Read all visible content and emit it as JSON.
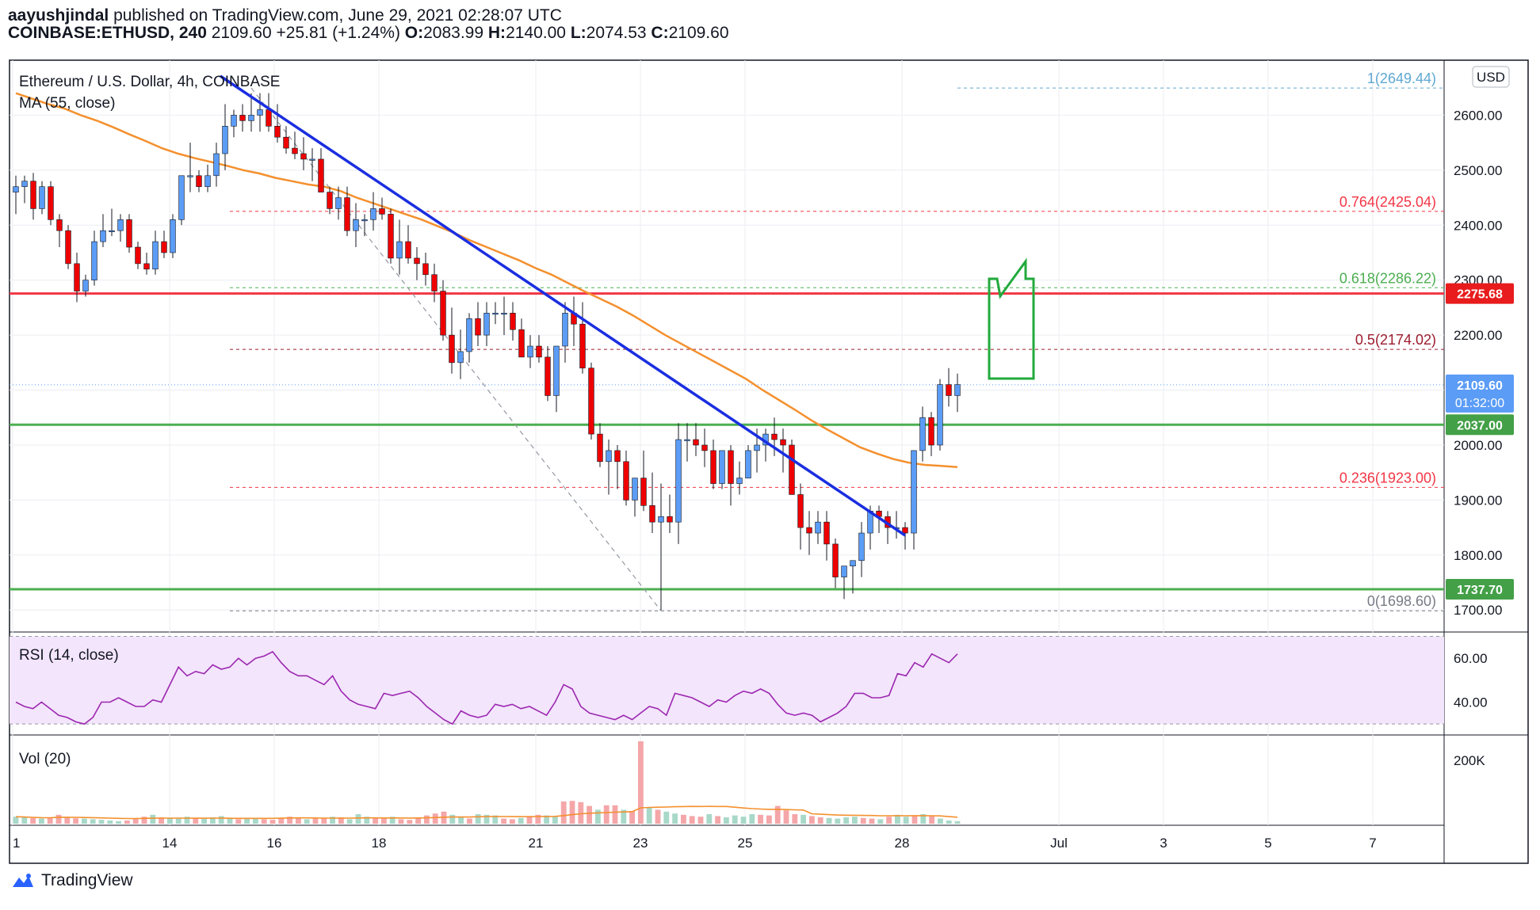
{
  "header": {
    "author": "aayushjindal",
    "published_text": "published on TradingView.com, June 29, 2021 02:28:07 UTC",
    "symbol_line": "COINBASE:ETHUSD, 240",
    "last": "2109.60",
    "change": "+25.81 (+1.24%)",
    "o_label": "O:",
    "o_value": "2083.99",
    "h_label": "H:",
    "h_value": "2140.00",
    "l_label": "L:",
    "l_value": "2074.53",
    "c_label": "C:",
    "c_value": "2109.60"
  },
  "footer": {
    "brand": "TradingView"
  },
  "colors": {
    "up": "#5b9cf6",
    "down": "#ef0000",
    "ma": "#f4902e",
    "trendline": "#1a2ee0",
    "support": "#4caf50",
    "resistance": "#f23645",
    "rsi": "#9c27b0",
    "rsi_band": "#f3e5fc",
    "arrow": "#22aa3c"
  },
  "chart_data": {
    "type": "candlestick",
    "title": "Ethereum / U.S. Dollar, 4h, COINBASE",
    "currency": "USD",
    "indicator_label": "MA (55, close)",
    "ylim": [
      1660,
      2700
    ],
    "y_ticks": [
      "2600.00",
      "2500.00",
      "2400.00",
      "2300.00",
      "2200.00",
      "2100.00",
      "2000.00",
      "1900.00",
      "1800.00",
      "1700.00"
    ],
    "x_tick_labels": [
      "1",
      "14",
      "16",
      "18",
      "21",
      "23",
      "25",
      "28",
      "Jul",
      "3",
      "5",
      "7"
    ],
    "candles_ohlc": [
      [
        2460,
        2490,
        2420,
        2470
      ],
      [
        2470,
        2490,
        2440,
        2480
      ],
      [
        2480,
        2495,
        2410,
        2430
      ],
      [
        2430,
        2480,
        2420,
        2470
      ],
      [
        2470,
        2480,
        2400,
        2410
      ],
      [
        2410,
        2420,
        2360,
        2390
      ],
      [
        2390,
        2400,
        2320,
        2330
      ],
      [
        2330,
        2350,
        2260,
        2280
      ],
      [
        2280,
        2310,
        2270,
        2300
      ],
      [
        2300,
        2390,
        2290,
        2370
      ],
      [
        2370,
        2420,
        2360,
        2390
      ],
      [
        2390,
        2430,
        2380,
        2390
      ],
      [
        2390,
        2420,
        2370,
        2410
      ],
      [
        2410,
        2420,
        2350,
        2360
      ],
      [
        2360,
        2370,
        2320,
        2330
      ],
      [
        2330,
        2350,
        2310,
        2320
      ],
      [
        2320,
        2390,
        2310,
        2370
      ],
      [
        2370,
        2390,
        2340,
        2350
      ],
      [
        2350,
        2420,
        2340,
        2410
      ],
      [
        2410,
        2470,
        2400,
        2490
      ],
      [
        2490,
        2550,
        2460,
        2490
      ],
      [
        2490,
        2500,
        2460,
        2470
      ],
      [
        2470,
        2510,
        2460,
        2490
      ],
      [
        2490,
        2550,
        2470,
        2530
      ],
      [
        2530,
        2620,
        2500,
        2580
      ],
      [
        2580,
        2610,
        2560,
        2600
      ],
      [
        2600,
        2620,
        2570,
        2590
      ],
      [
        2590,
        2640,
        2570,
        2600
      ],
      [
        2600,
        2640,
        2570,
        2610
      ],
      [
        2610,
        2640,
        2570,
        2580
      ],
      [
        2580,
        2620,
        2550,
        2560
      ],
      [
        2560,
        2580,
        2530,
        2540
      ],
      [
        2540,
        2570,
        2520,
        2530
      ],
      [
        2530,
        2560,
        2500,
        2520
      ],
      [
        2520,
        2540,
        2480,
        2520
      ],
      [
        2520,
        2540,
        2460,
        2460
      ],
      [
        2460,
        2470,
        2420,
        2430
      ],
      [
        2430,
        2470,
        2410,
        2450
      ],
      [
        2450,
        2470,
        2380,
        2390
      ],
      [
        2390,
        2440,
        2360,
        2410
      ],
      [
        2410,
        2420,
        2380,
        2410
      ],
      [
        2410,
        2460,
        2390,
        2430
      ],
      [
        2430,
        2450,
        2410,
        2420
      ],
      [
        2420,
        2430,
        2330,
        2340
      ],
      [
        2340,
        2410,
        2310,
        2370
      ],
      [
        2370,
        2400,
        2330,
        2340
      ],
      [
        2340,
        2360,
        2300,
        2330
      ],
      [
        2330,
        2350,
        2290,
        2310
      ],
      [
        2310,
        2330,
        2260,
        2280
      ],
      [
        2280,
        2300,
        2190,
        2200
      ],
      [
        2200,
        2250,
        2130,
        2150
      ],
      [
        2150,
        2210,
        2120,
        2170
      ],
      [
        2170,
        2240,
        2150,
        2230
      ],
      [
        2230,
        2260,
        2180,
        2200
      ],
      [
        2200,
        2260,
        2180,
        2240
      ],
      [
        2240,
        2260,
        2220,
        2240
      ],
      [
        2240,
        2270,
        2200,
        2240
      ],
      [
        2240,
        2260,
        2190,
        2210
      ],
      [
        2210,
        2230,
        2160,
        2160
      ],
      [
        2160,
        2200,
        2140,
        2180
      ],
      [
        2180,
        2200,
        2150,
        2160
      ],
      [
        2160,
        2180,
        2080,
        2090
      ],
      [
        2090,
        2180,
        2060,
        2180
      ],
      [
        2180,
        2260,
        2150,
        2240
      ],
      [
        2240,
        2270,
        2180,
        2220
      ],
      [
        2220,
        2260,
        2130,
        2140
      ],
      [
        2140,
        2150,
        2010,
        2020
      ],
      [
        2020,
        2040,
        1960,
        1970
      ],
      [
        1970,
        2010,
        1910,
        1990
      ],
      [
        1990,
        2000,
        1920,
        1970
      ],
      [
        1970,
        1990,
        1890,
        1900
      ],
      [
        1900,
        1940,
        1870,
        1940
      ],
      [
        1940,
        1990,
        1880,
        1890
      ],
      [
        1890,
        1950,
        1840,
        1860
      ],
      [
        1860,
        1930,
        1700,
        1870
      ],
      [
        1870,
        1910,
        1840,
        1860
      ],
      [
        1860,
        2040,
        1820,
        2010
      ],
      [
        2010,
        2040,
        1970,
        2010
      ],
      [
        2010,
        2040,
        1980,
        2000
      ],
      [
        2000,
        2030,
        1960,
        1990
      ],
      [
        1990,
        2010,
        1920,
        1930
      ],
      [
        1930,
        1990,
        1920,
        1990
      ],
      [
        1990,
        2000,
        1890,
        1930
      ],
      [
        1930,
        1970,
        1910,
        1940
      ],
      [
        1940,
        2000,
        1940,
        1990
      ],
      [
        1990,
        2030,
        1950,
        2000
      ],
      [
        2000,
        2030,
        1970,
        2020
      ],
      [
        2020,
        2050,
        1980,
        2010
      ],
      [
        2010,
        2030,
        1950,
        2000
      ],
      [
        2000,
        2010,
        1940,
        1910
      ],
      [
        1910,
        1930,
        1810,
        1850
      ],
      [
        1850,
        1880,
        1800,
        1840
      ],
      [
        1840,
        1880,
        1820,
        1860
      ],
      [
        1860,
        1880,
        1790,
        1820
      ],
      [
        1820,
        1830,
        1740,
        1760
      ],
      [
        1760,
        1780,
        1720,
        1780
      ],
      [
        1780,
        1790,
        1730,
        1790
      ],
      [
        1790,
        1860,
        1760,
        1840
      ],
      [
        1840,
        1890,
        1810,
        1880
      ],
      [
        1880,
        1890,
        1840,
        1870
      ],
      [
        1870,
        1880,
        1820,
        1850
      ],
      [
        1850,
        1880,
        1830,
        1850
      ],
      [
        1850,
        1860,
        1810,
        1840
      ],
      [
        1840,
        1900,
        1810,
        1990
      ],
      [
        1990,
        2070,
        1970,
        2050
      ],
      [
        2050,
        2060,
        1980,
        2000
      ],
      [
        2000,
        2120,
        1990,
        2110
      ],
      [
        2110,
        2140,
        2070,
        2090
      ],
      [
        2090,
        2130,
        2060,
        2110
      ]
    ],
    "ma55_values": [
      2640,
      2630,
      2620,
      2612,
      2600,
      2590,
      2578,
      2565,
      2553,
      2540,
      2530,
      2522,
      2515,
      2508,
      2500,
      2494,
      2486,
      2480,
      2474,
      2470,
      2462,
      2450,
      2440,
      2430,
      2420,
      2410,
      2398,
      2386,
      2372,
      2360,
      2348,
      2336,
      2322,
      2310,
      2295,
      2280,
      2266,
      2252,
      2236,
      2218,
      2200,
      2184,
      2168,
      2152,
      2136,
      2120,
      2100,
      2082,
      2064,
      2045,
      2028,
      2012,
      1996,
      1985,
      1975,
      1968,
      1964,
      1962,
      1960
    ],
    "resistance_level": 2275.68,
    "support_levels": [
      2037.0,
      1737.7
    ],
    "last_price": 2109.6,
    "countdown": "01:32:00",
    "fibonacci": [
      {
        "label": "1(2649.44)",
        "value": 2649.44
      },
      {
        "label": "0.764(2425.04)",
        "value": 2425.04
      },
      {
        "label": "0.618(2286.22)",
        "value": 2286.22
      },
      {
        "label": "0.5(2174.02)",
        "value": 2174.02
      },
      {
        "label": "0.236(1923.00)",
        "value": 1923.0
      },
      {
        "label": "0(1698.60)",
        "value": 1698.6
      }
    ],
    "tags": {
      "resistance": "2275.68",
      "last": "2109.60",
      "support_hi": "2037.00",
      "support_lo": "1737.70"
    },
    "rsi": {
      "label": "RSI (14, close)",
      "ylim": [
        25,
        72
      ],
      "band": [
        70,
        30
      ],
      "y_ticks": [
        "60.00",
        "40.00"
      ],
      "values": [
        40,
        38,
        37,
        40,
        37,
        34,
        33,
        31,
        30,
        33,
        40,
        40,
        42,
        40,
        38,
        38,
        41,
        40,
        48,
        56,
        52,
        54,
        53,
        57,
        55,
        56,
        60,
        57,
        60,
        61,
        63,
        58,
        54,
        52,
        52,
        50,
        48,
        52,
        45,
        41,
        39,
        38,
        37,
        44,
        43,
        44,
        45,
        42,
        38,
        35,
        32,
        30,
        36,
        34,
        33,
        34,
        39,
        38,
        39,
        37,
        38,
        36,
        34,
        40,
        48,
        46,
        38,
        35,
        34,
        33,
        32,
        34,
        32,
        35,
        38,
        37,
        34,
        44,
        43,
        42,
        40,
        38,
        41,
        40,
        43,
        45,
        44,
        46,
        44,
        39,
        35,
        34,
        35,
        34,
        31,
        33,
        35,
        38,
        44,
        44,
        42,
        42,
        43,
        53,
        52,
        58,
        56,
        62,
        60,
        58,
        62
      ]
    },
    "volume": {
      "label": "Vol (20)",
      "y_ticks": [
        "200K"
      ],
      "max": 260000,
      "values": [
        22000,
        20000,
        18000,
        16000,
        18000,
        28000,
        20000,
        17000,
        16000,
        14000,
        12000,
        10000,
        8000,
        10000,
        16000,
        22000,
        28000,
        20000,
        18000,
        16000,
        22000,
        18000,
        15000,
        20000,
        24000,
        16000,
        14000,
        18000,
        16000,
        14000,
        12000,
        18000,
        22000,
        18000,
        14000,
        16000,
        18000,
        22000,
        20000,
        14000,
        30000,
        22000,
        18000,
        16000,
        22000,
        14000,
        12000,
        20000,
        26000,
        32000,
        38000,
        28000,
        22000,
        16000,
        30000,
        28000,
        26000,
        16000,
        14000,
        18000,
        24000,
        28000,
        26000,
        22000,
        70000,
        72000,
        68000,
        56000,
        44000,
        58000,
        58000,
        44000,
        40000,
        260000,
        52000,
        44000,
        38000,
        32000,
        28000,
        24000,
        22000,
        30000,
        24000,
        20000,
        26000,
        22000,
        30000,
        28000,
        26000,
        56000,
        42000,
        30000,
        28000,
        24000,
        20000,
        18000,
        16000,
        20000,
        22000,
        18000,
        16000,
        14000,
        22000,
        28000,
        22000,
        26000,
        30000,
        24000,
        16000,
        10000,
        8000
      ]
    }
  }
}
